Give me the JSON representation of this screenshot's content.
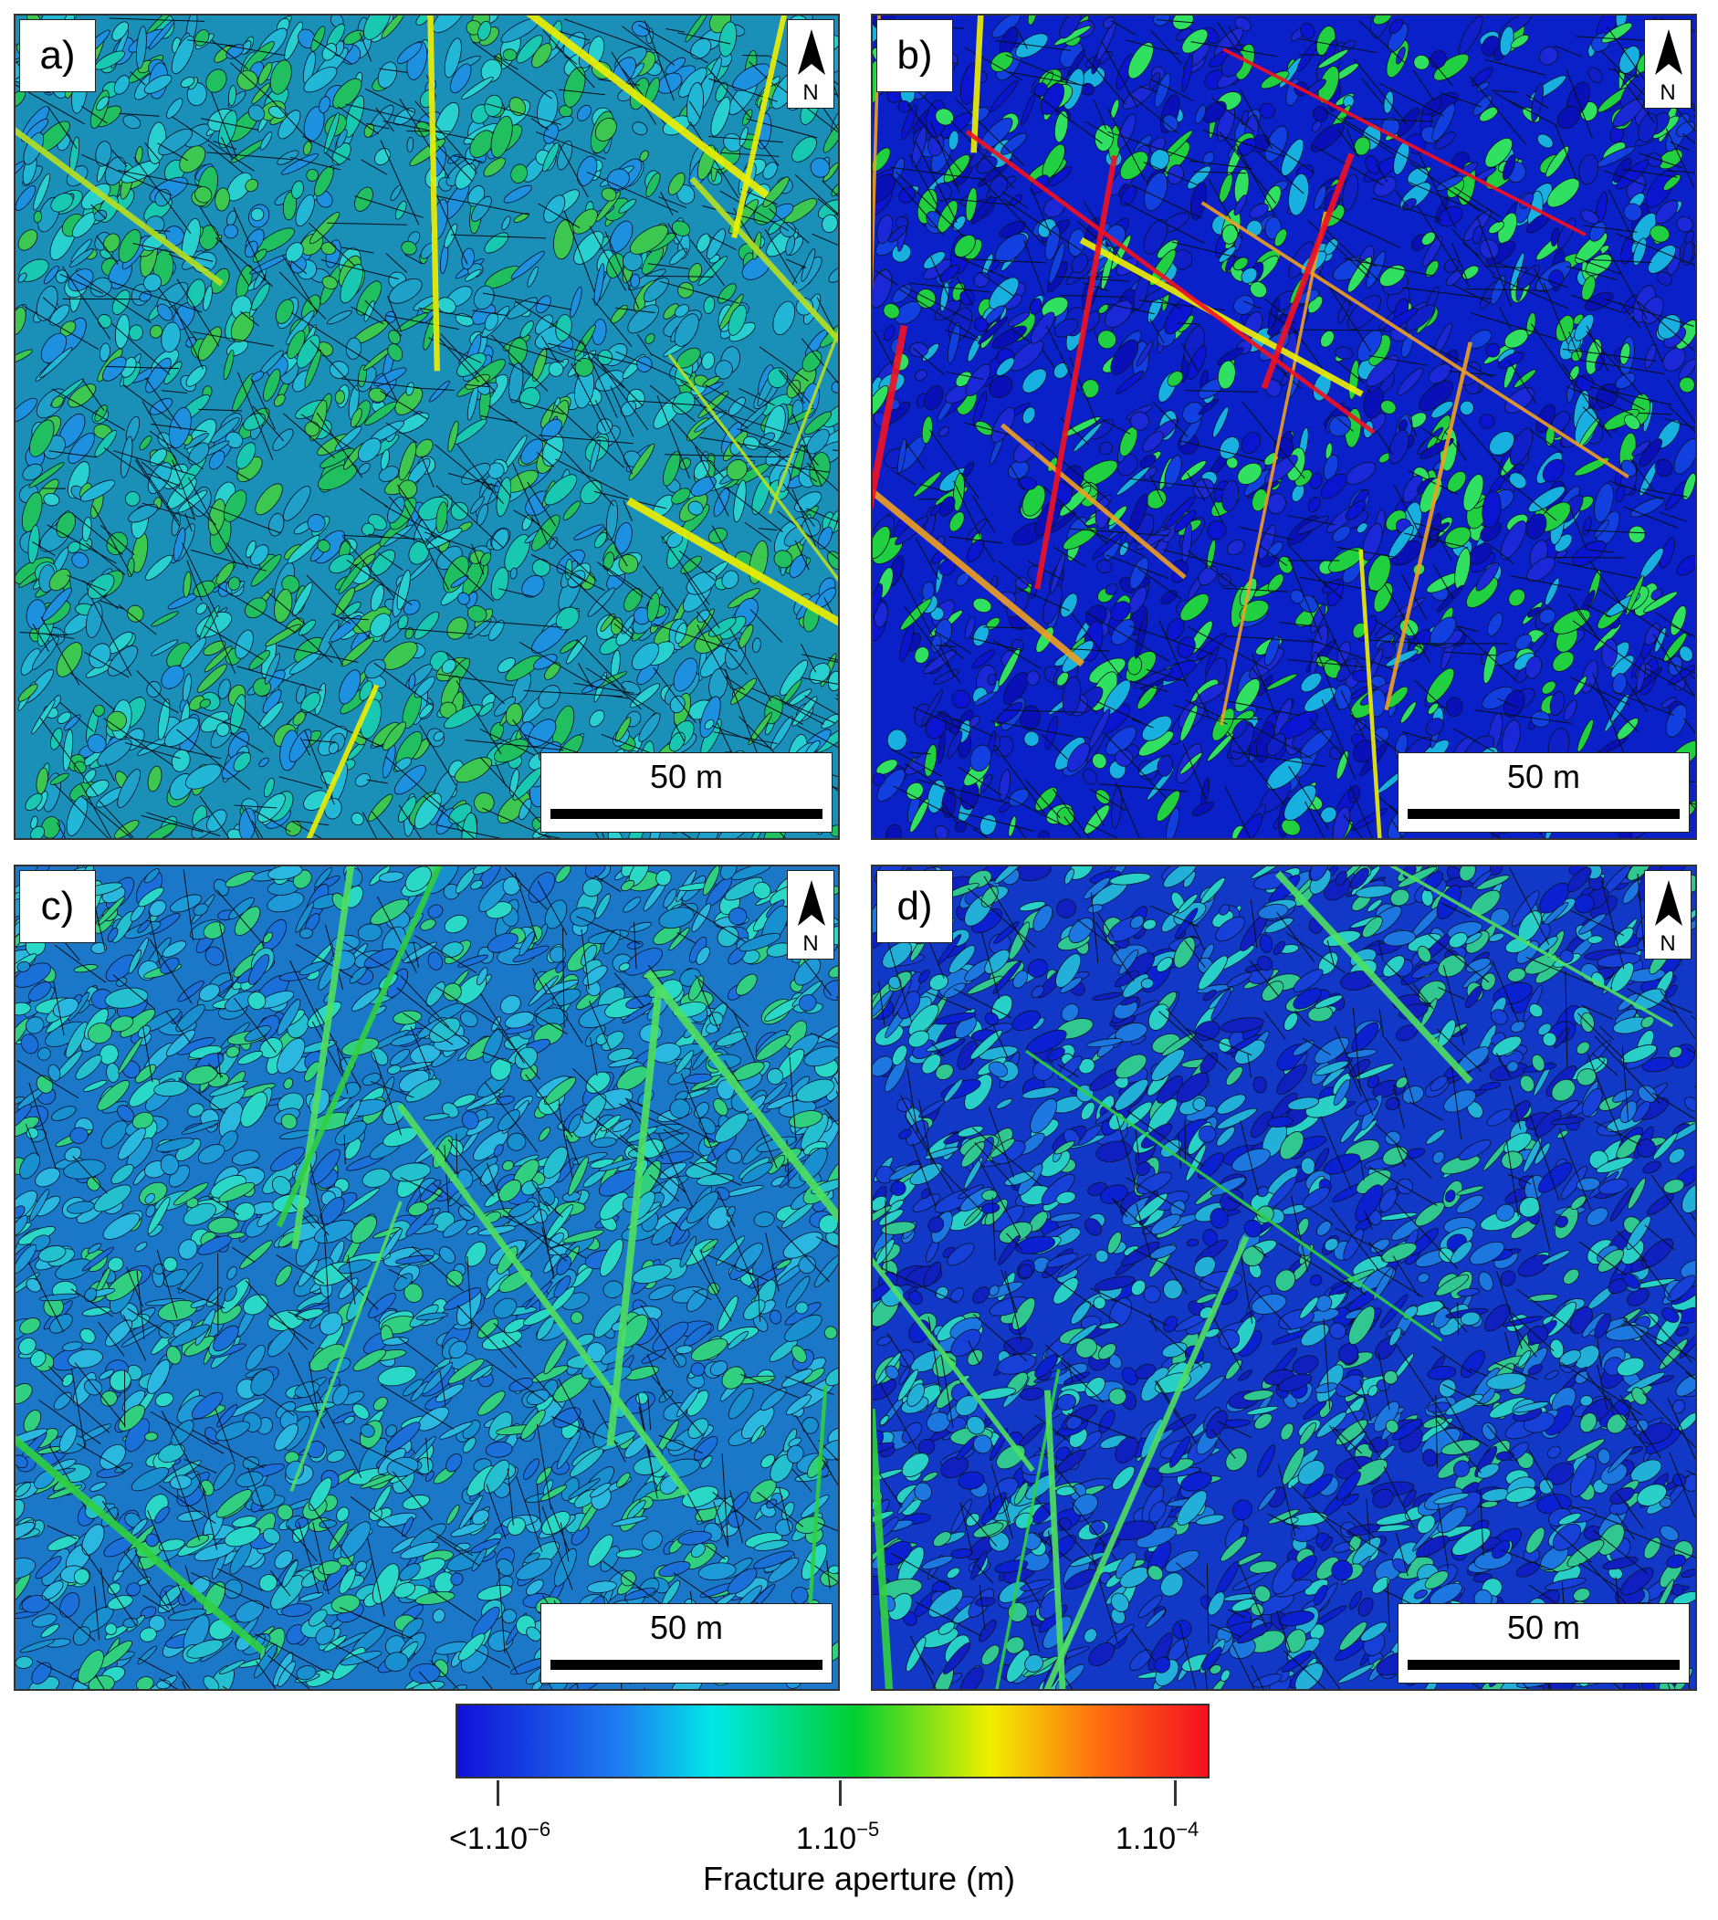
{
  "panels": [
    {
      "label": "a)",
      "north": "N",
      "scale": "50 m"
    },
    {
      "label": "b)",
      "north": "N",
      "scale": "50 m"
    },
    {
      "label": "c)",
      "north": "N",
      "scale": "50 m"
    },
    {
      "label": "d)",
      "north": "N",
      "scale": "50 m"
    }
  ],
  "colorbar": {
    "title": "Fracture aperture (m)",
    "ticks": [
      {
        "base": "<1.10",
        "exp": "−6"
      },
      {
        "base": "1.10",
        "exp": "−5"
      },
      {
        "base": "1.10",
        "exp": "−4"
      }
    ]
  },
  "colors": {
    "blue": "#1010d8",
    "cyan": "#00e8e8",
    "green": "#00d030",
    "yellow": "#f0f000",
    "orange": "#ff7010",
    "red": "#f41020"
  }
}
